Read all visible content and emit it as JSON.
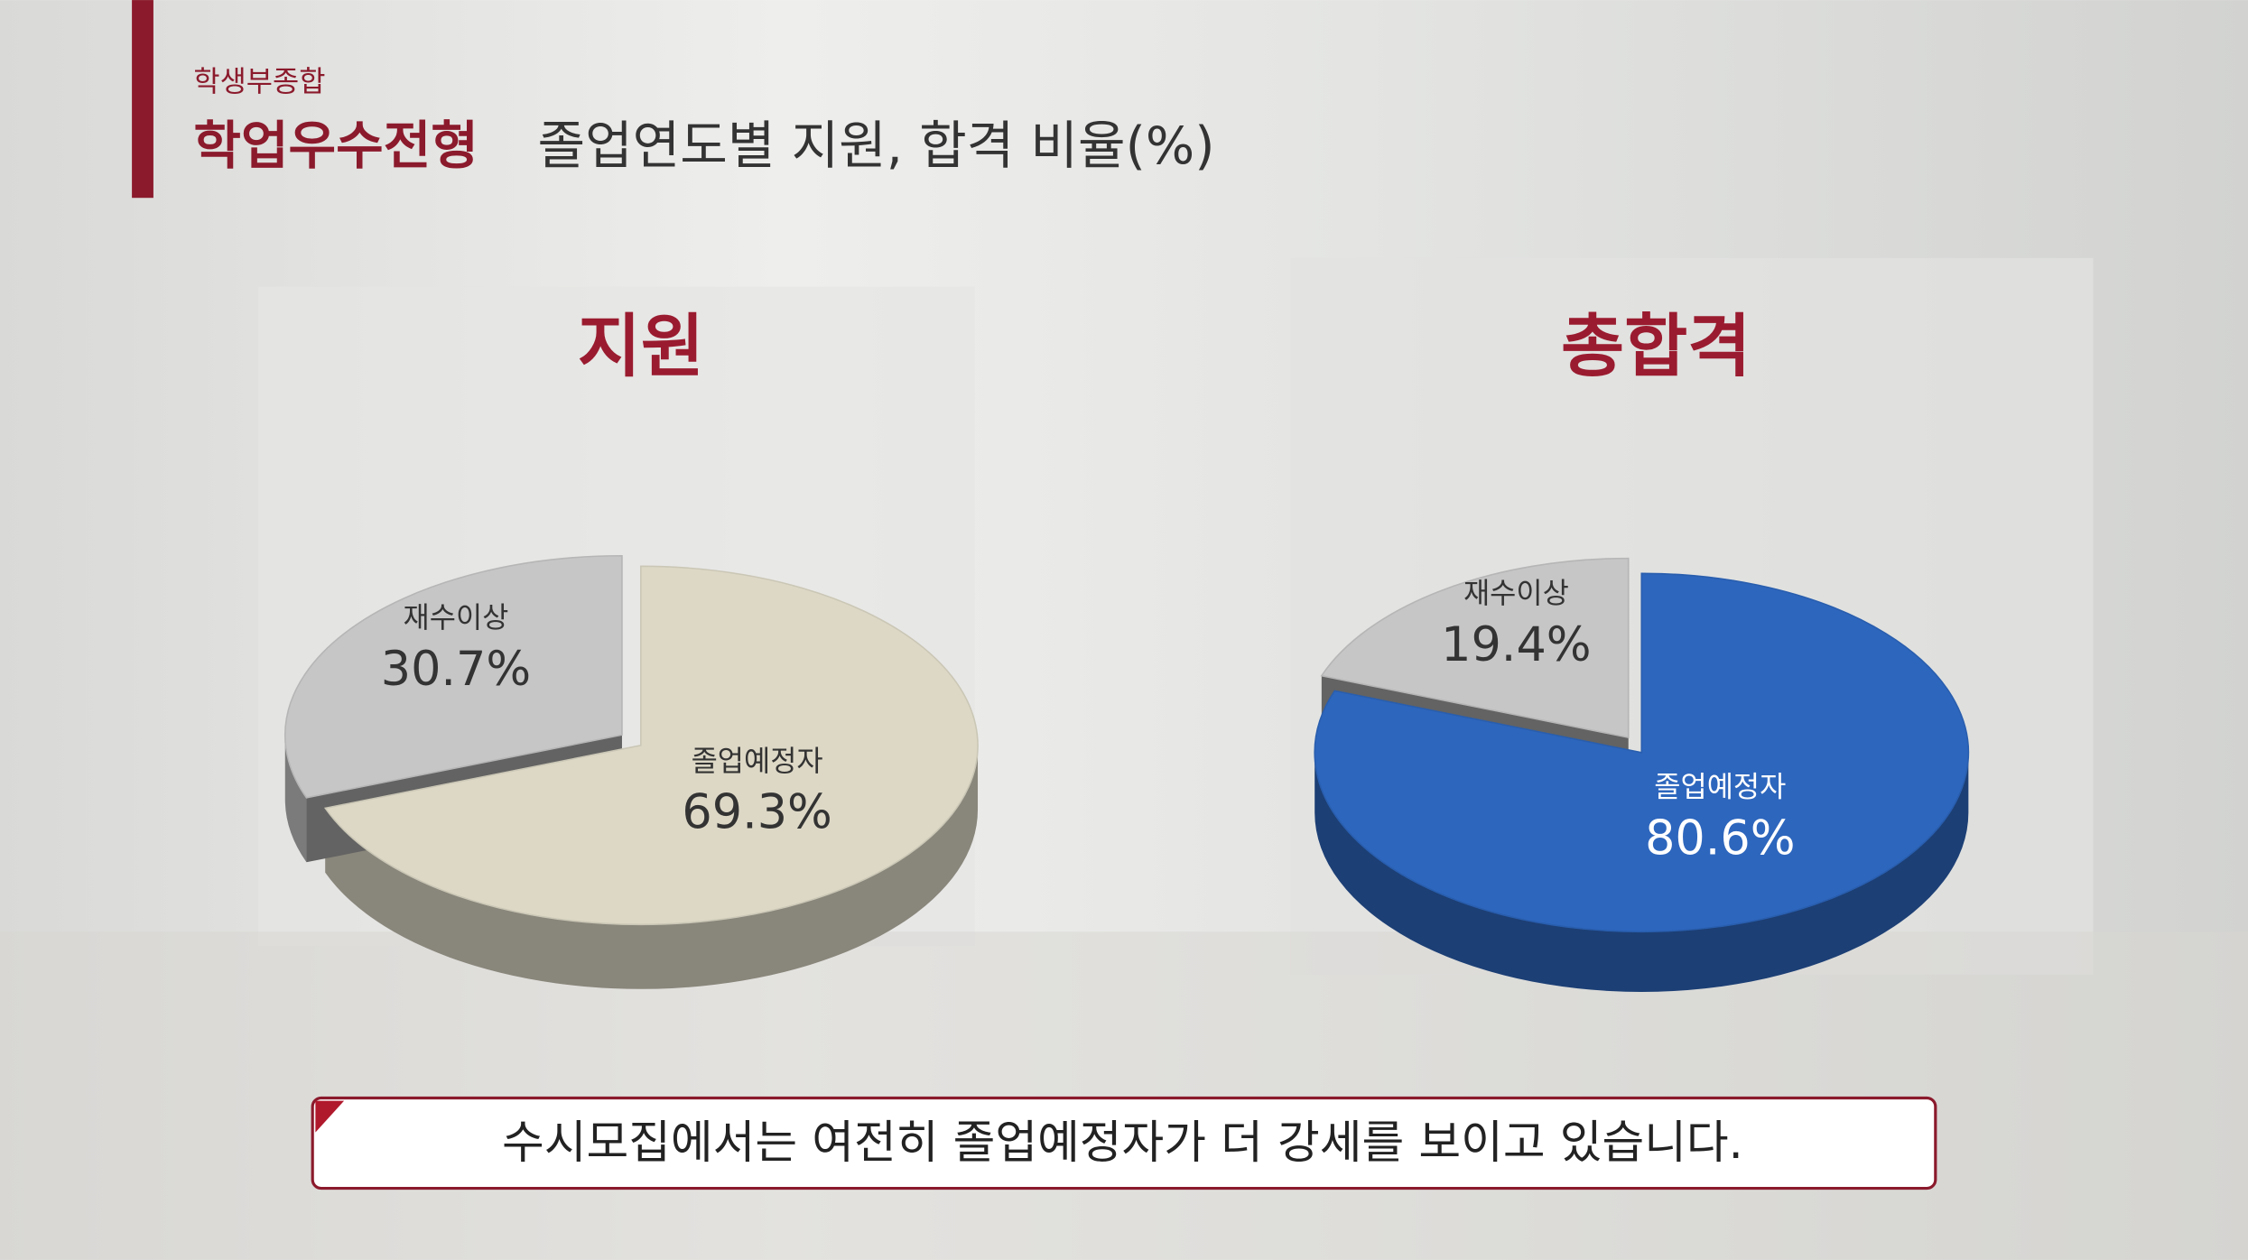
{
  "header": {
    "category": "학생부종합",
    "title": "학업우수전형",
    "subtitle": "졸업연도별 지원, 합격 비율(%)"
  },
  "chart_data": [
    {
      "type": "pie",
      "title": "지원",
      "categories": [
        "졸업예정자",
        "재수이상"
      ],
      "values": [
        69.3,
        30.7
      ],
      "value_labels": [
        "69.3%",
        "30.7%"
      ],
      "colors": [
        "#ddd8c6",
        "#c6c6c6"
      ]
    },
    {
      "type": "pie",
      "title": "총합격",
      "categories": [
        "졸업예정자",
        "재수이상"
      ],
      "values": [
        80.6,
        19.4
      ],
      "value_labels": [
        "80.6%",
        "19.4%"
      ],
      "colors": [
        "#2d66bd",
        "#c6c6c6"
      ]
    }
  ],
  "caption": "수시모집에서는 여전히 졸업예정자가 더 강세를 보이고 있습니다."
}
